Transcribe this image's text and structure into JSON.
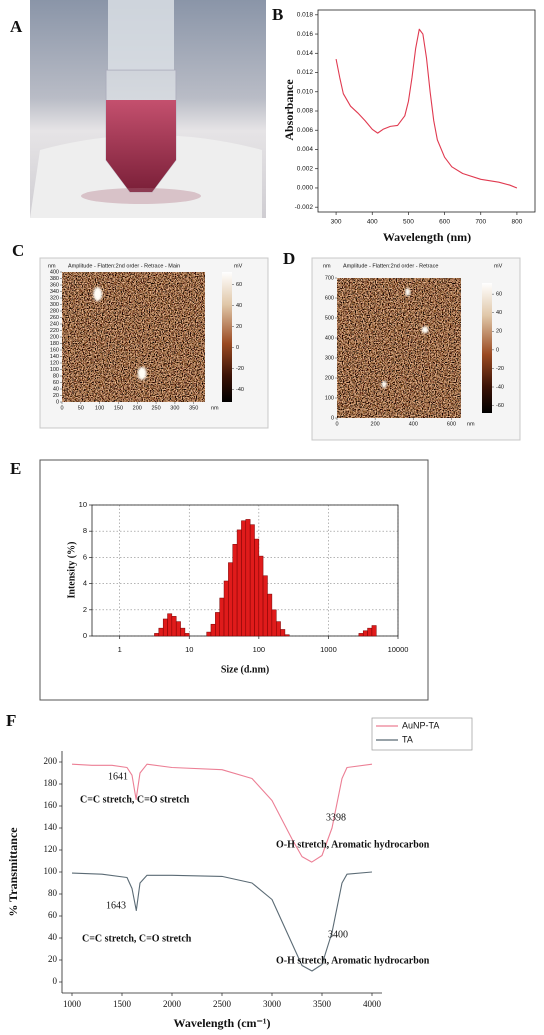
{
  "photo": {
    "panel_label": "A"
  },
  "afm": [
    {
      "panel_label": "C",
      "axis_unit": "nm",
      "header": "Amplitude  -  Flatten:2nd order  -  Retrace  -  Main",
      "colorbar_unit": "mV",
      "xlim": [
        0,
        380
      ],
      "xticks": [
        0,
        50,
        100,
        150,
        200,
        250,
        300,
        350
      ],
      "ylim": [
        0,
        400
      ],
      "yticks": [
        0,
        20,
        40,
        60,
        80,
        100,
        120,
        140,
        160,
        180,
        200,
        220,
        240,
        260,
        280,
        300,
        320,
        340,
        360,
        380,
        400
      ],
      "colorbar_lim": [
        -52,
        72
      ],
      "colorbar_ticks": [
        60,
        40,
        20,
        0,
        -20,
        -40
      ]
    },
    {
      "panel_label": "D",
      "axis_unit": "nm",
      "header": "Amplitude  -  Flatten:2nd order  -  Retrace",
      "colorbar_unit": "mV",
      "xlim": [
        0,
        650
      ],
      "xticks": [
        0,
        200,
        400,
        600
      ],
      "ylim": [
        0,
        700
      ],
      "yticks": [
        0,
        100,
        200,
        300,
        400,
        500,
        600,
        700
      ],
      "colorbar_lim": [
        -68,
        72
      ],
      "colorbar_ticks": [
        60,
        40,
        20,
        0,
        -20,
        -40,
        -60
      ]
    }
  ],
  "chart_data": [
    {
      "panel_label": "B",
      "type": "line",
      "frame": "box",
      "xlabel": "Wavelength (nm)",
      "ylabel": "Absorbance",
      "color": "#e03a50",
      "x": [
        300,
        310,
        320,
        340,
        360,
        380,
        400,
        415,
        430,
        450,
        470,
        490,
        500,
        510,
        520,
        530,
        540,
        550,
        560,
        570,
        580,
        600,
        620,
        650,
        700,
        750,
        780,
        800
      ],
      "values": [
        0.0134,
        0.0115,
        0.0098,
        0.0085,
        0.0078,
        0.007,
        0.0061,
        0.0057,
        0.0061,
        0.0064,
        0.0065,
        0.0075,
        0.009,
        0.0115,
        0.0145,
        0.0165,
        0.016,
        0.0135,
        0.01,
        0.007,
        0.005,
        0.0032,
        0.0022,
        0.0015,
        0.0009,
        0.0006,
        0.0003,
        0
      ],
      "xlim": [
        250,
        850
      ],
      "xticks": [
        300,
        400,
        500,
        600,
        700,
        800
      ],
      "ylim": [
        -0.0025,
        0.0185
      ],
      "yticks": [
        -0.002,
        {
          "value": 0,
          "label": "0.000"
        },
        0.002,
        0.004,
        0.006,
        0.008,
        {
          "value": 0.01,
          "label": "0.010"
        },
        0.012,
        0.014,
        0.016,
        0.018
      ]
    },
    {
      "panel_label": "E",
      "type": "histogram",
      "frame": "box",
      "xlabel": "Size (d.nm)",
      "ylabel": "Intensity (%)",
      "color": "#e01b1b",
      "xscale": "log",
      "grid": true,
      "bins": [
        3.16,
        3.65,
        4.22,
        4.87,
        5.62,
        6.49,
        7.5,
        8.66,
        10,
        11.5,
        13.3,
        15.4,
        17.8,
        20.5,
        23.7,
        27.4,
        31.6,
        36.5,
        42.2,
        48.7,
        56.2,
        64.9,
        75,
        86.6,
        100,
        115,
        133,
        154,
        178,
        205,
        237,
        274,
        316,
        365,
        422,
        487,
        562,
        649,
        750,
        866,
        1000,
        1155,
        1334,
        1540,
        1778,
        2054,
        2371,
        2738,
        3162,
        3652,
        4217,
        4870,
        5623
      ],
      "counts": [
        0.2,
        0.6,
        1.3,
        1.7,
        1.5,
        1.1,
        0.6,
        0.2,
        0,
        0,
        0,
        0,
        0.3,
        0.9,
        1.8,
        2.9,
        4.2,
        5.6,
        7.0,
        8.1,
        8.8,
        8.9,
        8.5,
        7.4,
        6.1,
        4.6,
        3.2,
        2.0,
        1.1,
        0.5,
        0.1,
        0,
        0,
        0,
        0,
        0,
        0,
        0,
        0,
        0,
        0,
        0,
        0,
        0,
        0,
        0,
        0,
        0.2,
        0.4,
        0.6,
        0.8,
        0
      ],
      "xlim": [
        0.4,
        10000
      ],
      "xticks": [
        1,
        10,
        100,
        1000,
        10000
      ],
      "ylim": [
        0,
        10
      ],
      "yticks": [
        0,
        2,
        4,
        6,
        8,
        10
      ]
    },
    {
      "panel_label": "F",
      "type": "line",
      "frame": "open",
      "xlabel": "Wavelength (cm⁻¹)",
      "ylabel": "% Transmittance",
      "legend": "top-right",
      "series": [
        {
          "name": "AuNP-TA",
          "color": "#ec7f95",
          "x": [
            1000,
            1200,
            1400,
            1550,
            1600,
            1641,
            1680,
            1750,
            2000,
            2500,
            2800,
            3000,
            3200,
            3300,
            3398,
            3500,
            3600,
            3700,
            3750,
            4000
          ],
          "values": [
            198,
            197,
            197,
            195,
            188,
            166,
            190,
            198,
            195,
            193,
            185,
            165,
            130,
            114,
            109,
            115,
            140,
            185,
            195,
            198
          ]
        },
        {
          "name": "TA",
          "color": "#5b6b75",
          "x": [
            1000,
            1300,
            1550,
            1600,
            1643,
            1680,
            1750,
            2000,
            2500,
            2800,
            3000,
            3200,
            3300,
            3400,
            3500,
            3600,
            3700,
            3750,
            4000
          ],
          "values": [
            99,
            98,
            95,
            85,
            65,
            90,
            97,
            97,
            96,
            90,
            75,
            35,
            15,
            10,
            16,
            45,
            90,
            98,
            100
          ]
        }
      ],
      "annotations": [
        "1641",
        "C=C stretch,  C=O stretch",
        "3398",
        "O-H stretch, Aromatic hydrocarbon",
        "1643",
        "C=C stretch,  C=O stretch",
        "3400",
        "O-H stretch, Aromatic hydrocarbon"
      ],
      "xlim": [
        900,
        4100
      ],
      "xticks": [
        1000,
        1500,
        2000,
        2500,
        3000,
        3500,
        4000
      ],
      "ylim": [
        -10,
        210
      ],
      "yticks": [
        0,
        20,
        40,
        60,
        80,
        100,
        120,
        140,
        160,
        180,
        200
      ]
    }
  ]
}
